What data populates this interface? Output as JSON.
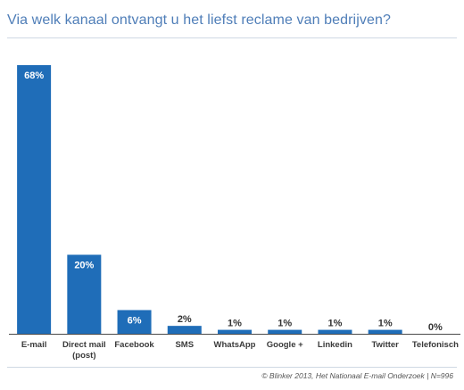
{
  "title": "Via welk kanaal ontvangt u het liefst reclame van bedrijven?",
  "source": "© Blinker 2013, Het Nationaal E-mail Onderzoek | N=996",
  "colors": {
    "bar": "#1f6db8",
    "axis": "#4a4a4a",
    "title": "#4f7eb8"
  },
  "chart_data": {
    "type": "bar",
    "title": "Via welk kanaal ontvangt u het liefst reclame van bedrijven?",
    "categories": [
      "E-mail",
      "Direct mail\n(post)",
      "Facebook",
      "SMS",
      "WhatsApp",
      "Google +",
      "Linkedin",
      "Twitter",
      "Telefonisch"
    ],
    "values": [
      68,
      20,
      6,
      2,
      1,
      1,
      1,
      1,
      0
    ],
    "value_labels": [
      "68%",
      "20%",
      "6%",
      "2%",
      "1%",
      "1%",
      "1%",
      "1%",
      "0%"
    ],
    "ylim": [
      0,
      68
    ],
    "grid": false,
    "legend": "none"
  }
}
